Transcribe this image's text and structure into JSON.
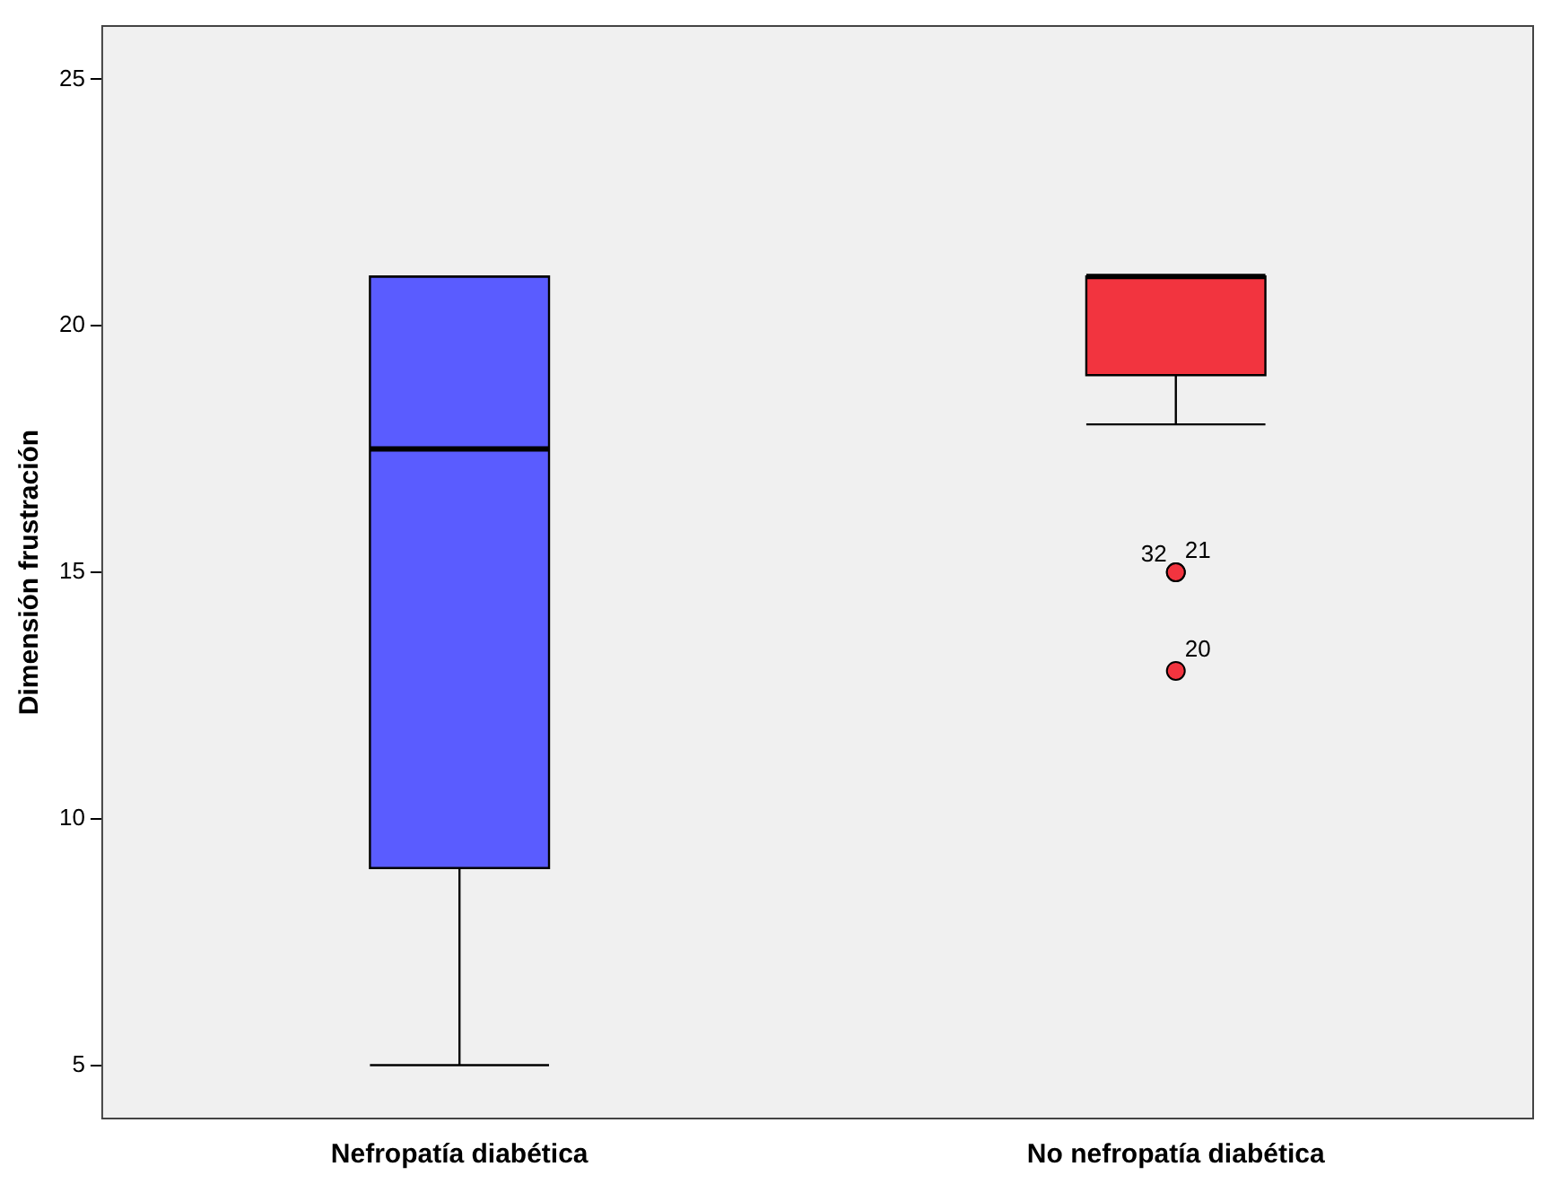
{
  "chart_data": {
    "type": "box",
    "ylabel": "Dimensión frustración",
    "categories": [
      "Nefropatía diabética",
      "No nefropatía diabética"
    ],
    "colors": [
      "#5a5cff",
      "#f2343f"
    ],
    "boxes": [
      {
        "low": 5,
        "q1": 9,
        "median": 17.5,
        "q3": 21,
        "high": 21
      },
      {
        "low": 18,
        "q1": 19,
        "median": 21,
        "q3": 21,
        "high": 21,
        "outliers": [
          15,
          15,
          13
        ]
      }
    ],
    "ylim": [
      3.9,
      26.1
    ],
    "yticks": [
      5,
      10,
      15,
      20,
      25
    ],
    "annotations": [
      "32",
      "21",
      "20"
    ]
  }
}
